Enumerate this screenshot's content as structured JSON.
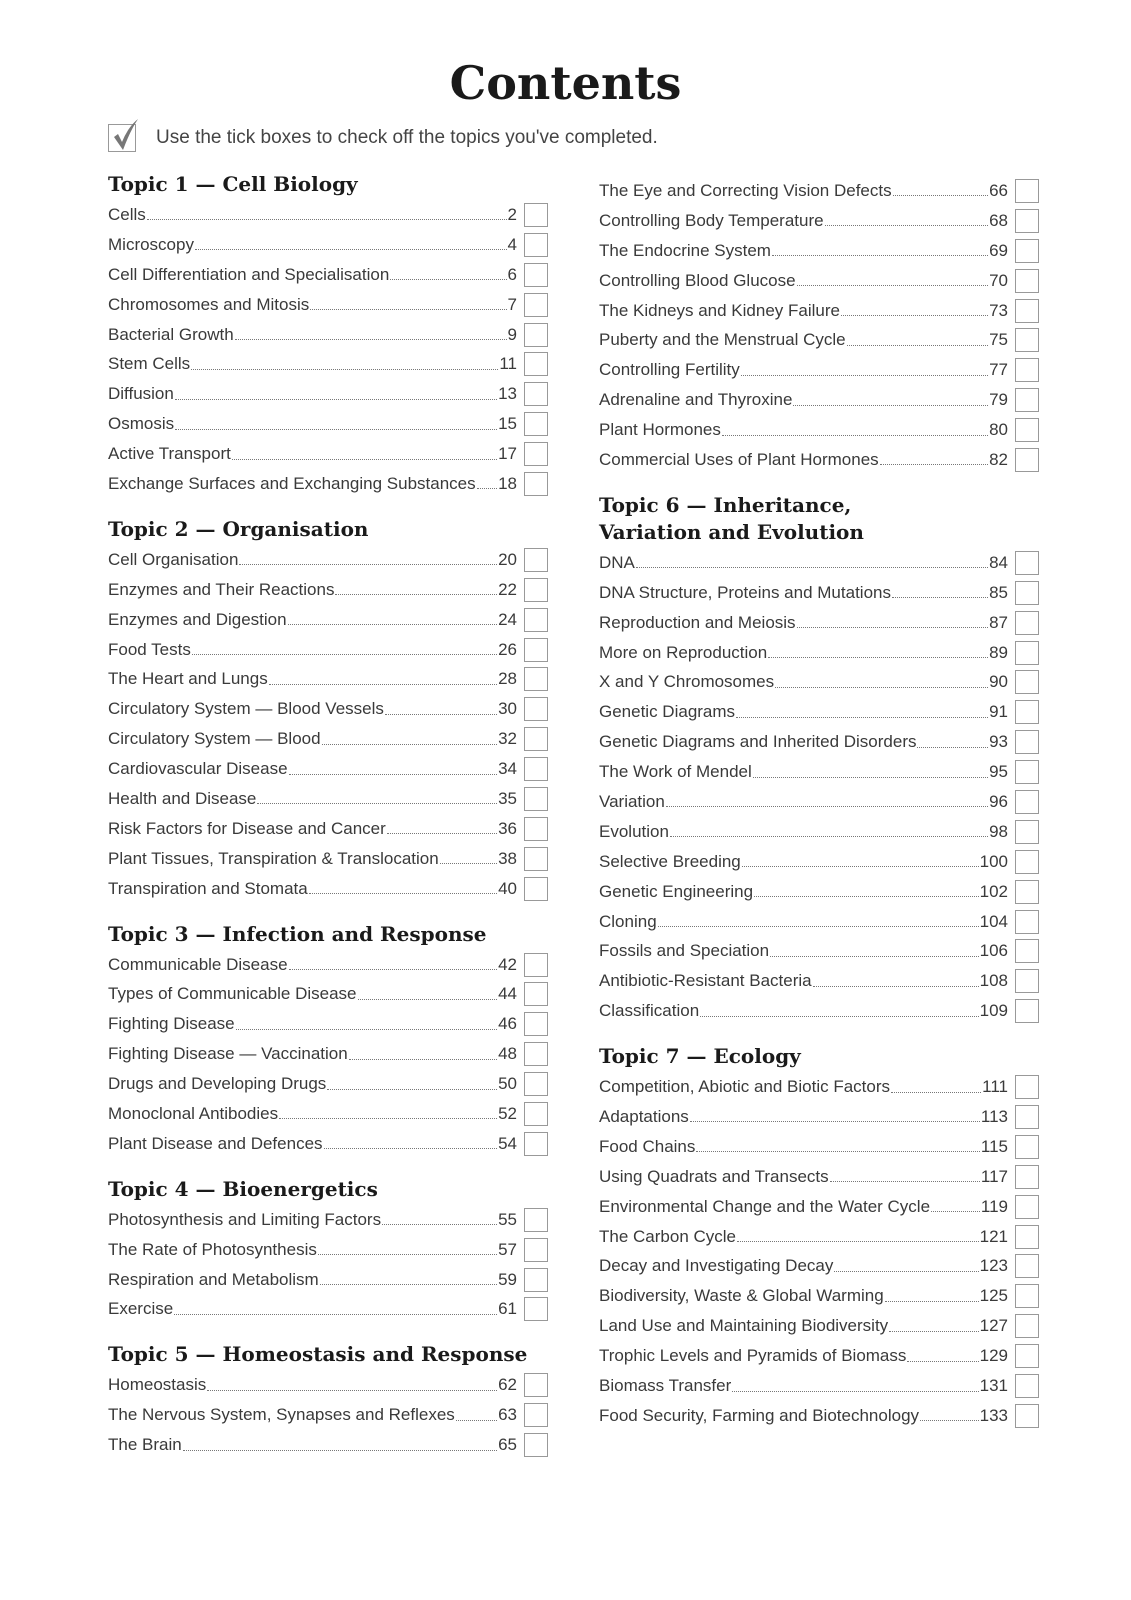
{
  "title": "Contents",
  "intro": "Use the tick boxes to check off the topics you've completed.",
  "columns": [
    [
      {
        "heading": "Topic 1 — Cell Biology",
        "items": [
          {
            "label": "Cells",
            "page": "2"
          },
          {
            "label": "Microscopy",
            "page": "4"
          },
          {
            "label": "Cell Differentiation and Specialisation",
            "page": "6"
          },
          {
            "label": "Chromosomes and Mitosis",
            "page": "7"
          },
          {
            "label": "Bacterial Growth",
            "page": "9"
          },
          {
            "label": "Stem Cells",
            "page": "11"
          },
          {
            "label": "Diffusion",
            "page": "13"
          },
          {
            "label": "Osmosis",
            "page": "15"
          },
          {
            "label": "Active Transport",
            "page": "17"
          },
          {
            "label": "Exchange Surfaces and Exchanging Substances",
            "page": "18"
          }
        ]
      },
      {
        "heading": "Topic 2 — Organisation",
        "items": [
          {
            "label": "Cell Organisation",
            "page": "20"
          },
          {
            "label": "Enzymes and Their Reactions",
            "page": "22"
          },
          {
            "label": "Enzymes and Digestion",
            "page": "24"
          },
          {
            "label": "Food Tests",
            "page": "26"
          },
          {
            "label": "The Heart and Lungs",
            "page": "28"
          },
          {
            "label": "Circulatory System — Blood Vessels",
            "page": "30"
          },
          {
            "label": "Circulatory System — Blood",
            "page": "32"
          },
          {
            "label": "Cardiovascular Disease",
            "page": "34"
          },
          {
            "label": "Health and Disease",
            "page": "35"
          },
          {
            "label": "Risk Factors for Disease and Cancer",
            "page": "36"
          },
          {
            "label": "Plant Tissues, Transpiration & Translocation",
            "page": "38"
          },
          {
            "label": "Transpiration and Stomata",
            "page": "40"
          }
        ]
      },
      {
        "heading": "Topic 3 — Infection and Response",
        "items": [
          {
            "label": "Communicable Disease",
            "page": "42"
          },
          {
            "label": "Types of Communicable Disease",
            "page": "44"
          },
          {
            "label": "Fighting Disease",
            "page": "46"
          },
          {
            "label": "Fighting Disease — Vaccination",
            "page": "48"
          },
          {
            "label": "Drugs and Developing Drugs",
            "page": "50"
          },
          {
            "label": "Monoclonal Antibodies",
            "page": "52"
          },
          {
            "label": "Plant Disease and Defences",
            "page": "54"
          }
        ]
      },
      {
        "heading": "Topic 4 — Bioenergetics",
        "items": [
          {
            "label": "Photosynthesis and Limiting Factors",
            "page": "55"
          },
          {
            "label": "The Rate of Photosynthesis",
            "page": "57"
          },
          {
            "label": "Respiration and Metabolism",
            "page": "59"
          },
          {
            "label": "Exercise",
            "page": "61"
          }
        ]
      },
      {
        "heading": "Topic 5 — Homeostasis and Response",
        "items": [
          {
            "label": "Homeostasis",
            "page": "62"
          },
          {
            "label": "The Nervous System, Synapses and Reflexes",
            "page": "63"
          },
          {
            "label": "The Brain",
            "page": "65"
          }
        ]
      }
    ],
    [
      {
        "heading": "",
        "items": [
          {
            "label": "The Eye and Correcting Vision Defects",
            "page": "66"
          },
          {
            "label": "Controlling Body Temperature",
            "page": "68"
          },
          {
            "label": "The Endocrine System",
            "page": "69"
          },
          {
            "label": "Controlling Blood Glucose",
            "page": "70"
          },
          {
            "label": "The Kidneys and Kidney Failure",
            "page": "73"
          },
          {
            "label": "Puberty and the Menstrual Cycle",
            "page": "75"
          },
          {
            "label": "Controlling Fertility",
            "page": "77"
          },
          {
            "label": "Adrenaline and Thyroxine",
            "page": "79"
          },
          {
            "label": "Plant Hormones",
            "page": "80"
          },
          {
            "label": "Commercial Uses of Plant Hormones",
            "page": "82"
          }
        ]
      },
      {
        "heading": "Topic 6 — Inheritance, Variation and Evolution",
        "items": [
          {
            "label": "DNA",
            "page": "84"
          },
          {
            "label": "DNA Structure, Proteins and Mutations",
            "page": "85"
          },
          {
            "label": "Reproduction and Meiosis",
            "page": "87"
          },
          {
            "label": "More on Reproduction",
            "page": "89"
          },
          {
            "label": "X and Y Chromosomes",
            "page": "90"
          },
          {
            "label": "Genetic Diagrams",
            "page": "91"
          },
          {
            "label": "Genetic Diagrams and Inherited Disorders",
            "page": "93"
          },
          {
            "label": "The Work of Mendel",
            "page": "95"
          },
          {
            "label": "Variation",
            "page": "96"
          },
          {
            "label": "Evolution",
            "page": "98"
          },
          {
            "label": "Selective Breeding",
            "page": "100"
          },
          {
            "label": "Genetic Engineering",
            "page": "102"
          },
          {
            "label": "Cloning",
            "page": "104"
          },
          {
            "label": "Fossils and Speciation",
            "page": "106"
          },
          {
            "label": "Antibiotic-Resistant Bacteria",
            "page": "108"
          },
          {
            "label": "Classification",
            "page": "109"
          }
        ]
      },
      {
        "heading": "Topic 7 — Ecology",
        "items": [
          {
            "label": "Competition, Abiotic and Biotic Factors",
            "page": "111"
          },
          {
            "label": "Adaptations",
            "page": "113"
          },
          {
            "label": "Food Chains",
            "page": "115"
          },
          {
            "label": "Using Quadrats and Transects",
            "page": "117"
          },
          {
            "label": "Environmental Change and the Water Cycle",
            "page": "119"
          },
          {
            "label": "The Carbon Cycle",
            "page": "121"
          },
          {
            "label": "Decay and Investigating Decay",
            "page": "123"
          },
          {
            "label": "Biodiversity, Waste & Global Warming",
            "page": "125"
          },
          {
            "label": "Land Use and Maintaining Biodiversity",
            "page": "127"
          },
          {
            "label": "Trophic Levels and Pyramids of Biomass",
            "page": "129"
          },
          {
            "label": "Biomass Transfer",
            "page": "131"
          },
          {
            "label": "Food Security, Farming and Biotechnology",
            "page": "133"
          }
        ]
      }
    ]
  ]
}
